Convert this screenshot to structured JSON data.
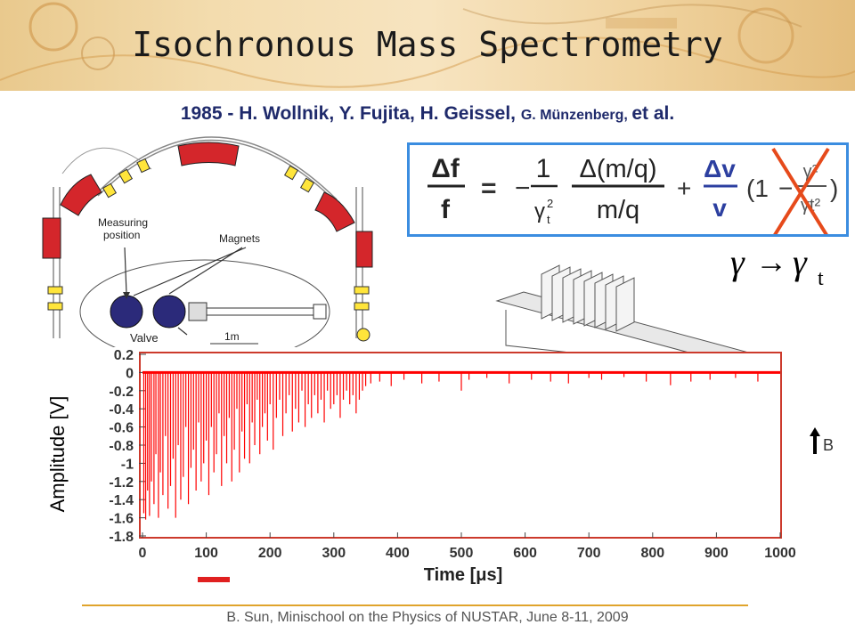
{
  "slide": {
    "title": "Isochronous Mass Spectrometry",
    "authors_main": "1985  - H. Wollnik, Y. Fujita, H. Geissel, ",
    "authors_small": "G. Münzenberg, ",
    "authors_end": "et al.",
    "footer": "B. Sun, Minischool on the Physics of NUSTAR, June 8-11, 2009"
  },
  "formula": {
    "lhs_num": "Δf",
    "lhs_den": "f",
    "equals": "=",
    "minus": "−",
    "coef_num": "1",
    "coef_den_base": "γ",
    "coef_den_sup": "2",
    "coef_den_sub": "t",
    "mass_num": "Δ(m/q)",
    "mass_den": "m/q",
    "plus": "+",
    "vel_num": "Δv",
    "vel_den": "v",
    "paren_open": "(1",
    "paren_minus": "−",
    "frac_num": "γ²",
    "frac_den": "γt²",
    "paren_close": ")",
    "colors": {
      "box_border": "#3b8de0",
      "velocity": "#2c3fa0",
      "cross": "#e64a1b"
    }
  },
  "gamma_relation": {
    "left": "γ",
    "arrow": "→",
    "right": "γ",
    "sub": "t"
  },
  "ring_diagram": {
    "label_measuring": "Measuring",
    "label_position": "position",
    "label_magnets": "Magnets",
    "label_valve": "Valve",
    "label_scale": "1m",
    "colors": {
      "dipole": "#d4262b",
      "quad": "#ffe53b",
      "detector": "#2b2a7a"
    }
  },
  "field_label": "B",
  "chart_data": {
    "type": "line",
    "xlabel": "Time [μs]",
    "ylabel": "Amplitude [V]",
    "xlim": [
      0,
      1000
    ],
    "ylim": [
      -1.8,
      0.2
    ],
    "x_ticks": [
      "0",
      "100",
      "200",
      "300",
      "400",
      "500",
      "600",
      "700",
      "800",
      "900",
      "1000"
    ],
    "y_ticks": [
      "0.2",
      "0",
      "-0.2",
      "-0.4",
      "-0.6",
      "-0.8",
      "-1",
      "-1.2",
      "-1.4",
      "-1.6",
      "-1.8"
    ],
    "baseline": 0,
    "series": [
      {
        "color": "#ff0000",
        "spikes_x": [
          2,
          5,
          8,
          11,
          14,
          18,
          21,
          25,
          28,
          32,
          36,
          40,
          44,
          48,
          52,
          56,
          60,
          64,
          68,
          72,
          76,
          80,
          84,
          88,
          92,
          96,
          100,
          104,
          108,
          112,
          116,
          120,
          124,
          128,
          132,
          136,
          140,
          144,
          148,
          152,
          156,
          160,
          164,
          168,
          172,
          176,
          180,
          184,
          188,
          192,
          196,
          200,
          205,
          210,
          215,
          220,
          225,
          230,
          235,
          240,
          245,
          250,
          255,
          260,
          265,
          270,
          275,
          280,
          285,
          290,
          295,
          300,
          305,
          310,
          315,
          320,
          325,
          330,
          335,
          340,
          345,
          350,
          358,
          372,
          390,
          410,
          438,
          465,
          500,
          512,
          540,
          575,
          610,
          640,
          668,
          700,
          720,
          755,
          790,
          828,
          860,
          890,
          930,
          965
        ],
        "spikes_y": [
          -1.55,
          -1.62,
          -1.3,
          -1.58,
          -1.2,
          -1.45,
          -0.9,
          -1.6,
          -1.1,
          -1.35,
          -0.7,
          -1.5,
          -1.25,
          -0.95,
          -1.6,
          -0.8,
          -1.4,
          -1.15,
          -0.6,
          -1.45,
          -1.05,
          -0.85,
          -1.3,
          -0.55,
          -1.2,
          -1.0,
          -0.75,
          -1.35,
          -0.6,
          -1.1,
          -0.9,
          -0.45,
          -1.25,
          -0.7,
          -1.0,
          -0.5,
          -1.2,
          -0.85,
          -0.4,
          -1.1,
          -0.65,
          -0.95,
          -0.35,
          -1.0,
          -0.55,
          -0.8,
          -0.3,
          -0.9,
          -0.6,
          -0.45,
          -0.75,
          -0.35,
          -0.85,
          -0.5,
          -0.3,
          -0.7,
          -0.45,
          -0.25,
          -0.65,
          -0.4,
          -0.55,
          -0.2,
          -0.6,
          -0.35,
          -0.5,
          -0.25,
          -0.45,
          -0.3,
          -0.55,
          -0.2,
          -0.4,
          -0.35,
          -0.25,
          -0.5,
          -0.3,
          -0.2,
          -0.35,
          -0.25,
          -0.45,
          -0.3,
          -0.2,
          -0.15,
          -0.12,
          -0.1,
          -0.15,
          -0.08,
          -0.12,
          -0.1,
          -0.2,
          -0.08,
          -0.06,
          -0.12,
          -0.08,
          -0.1,
          -0.12,
          -0.06,
          -0.08,
          -0.05,
          -0.1,
          -0.14,
          -0.1,
          -0.08,
          -0.06,
          -0.1
        ]
      }
    ]
  }
}
